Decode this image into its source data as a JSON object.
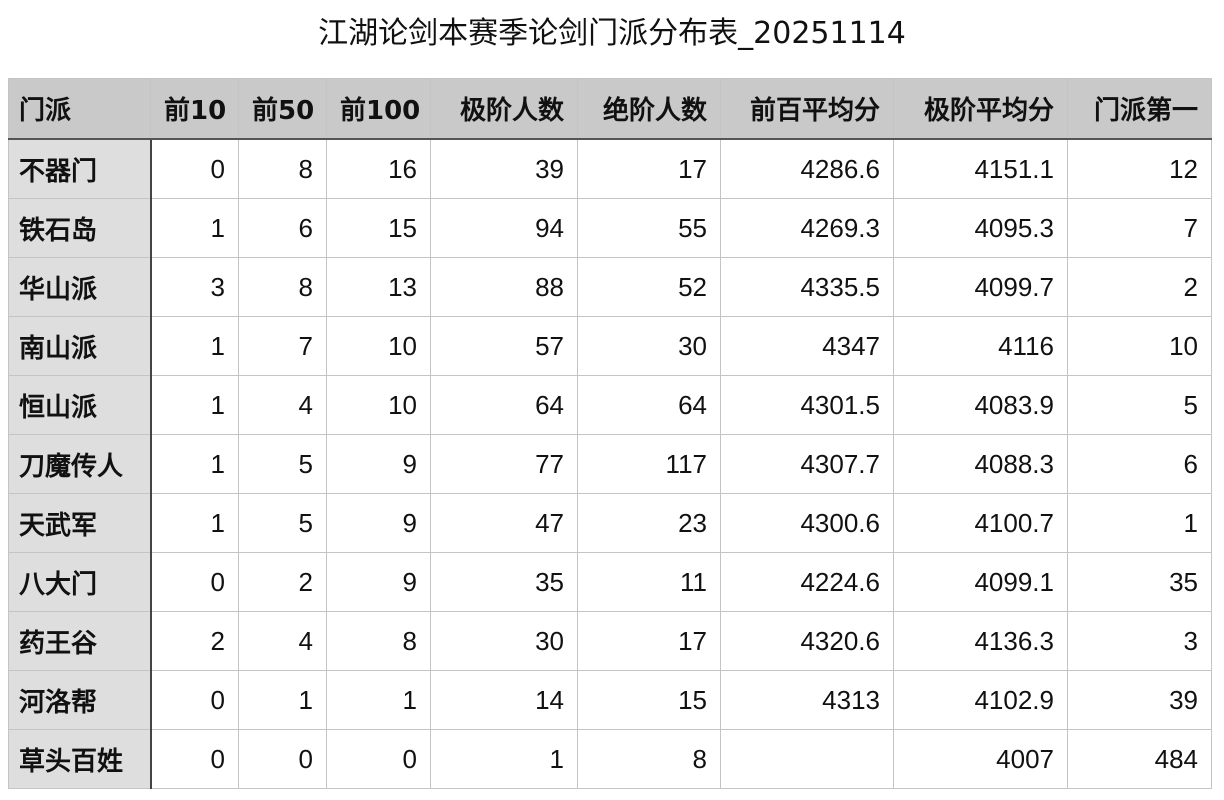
{
  "title": "江湖论剑本赛季论剑门派分布表_20251114",
  "table": {
    "headers": [
      "门派",
      "前10",
      "前50",
      "前100",
      "极阶人数",
      "绝阶人数",
      "前百平均分",
      "极阶平均分",
      "门派第一"
    ],
    "rows": [
      [
        "不器门",
        "0",
        "8",
        "16",
        "39",
        "17",
        "4286.6",
        "4151.1",
        "12"
      ],
      [
        "铁石岛",
        "1",
        "6",
        "15",
        "94",
        "55",
        "4269.3",
        "4095.3",
        "7"
      ],
      [
        "华山派",
        "3",
        "8",
        "13",
        "88",
        "52",
        "4335.5",
        "4099.7",
        "2"
      ],
      [
        "南山派",
        "1",
        "7",
        "10",
        "57",
        "30",
        "4347",
        "4116",
        "10"
      ],
      [
        "恒山派",
        "1",
        "4",
        "10",
        "64",
        "64",
        "4301.5",
        "4083.9",
        "5"
      ],
      [
        "刀魔传人",
        "1",
        "5",
        "9",
        "77",
        "117",
        "4307.7",
        "4088.3",
        "6"
      ],
      [
        "天武军",
        "1",
        "5",
        "9",
        "47",
        "23",
        "4300.6",
        "4100.7",
        "1"
      ],
      [
        "八大门",
        "0",
        "2",
        "9",
        "35",
        "11",
        "4224.6",
        "4099.1",
        "35"
      ],
      [
        "药王谷",
        "2",
        "4",
        "8",
        "30",
        "17",
        "4320.6",
        "4136.3",
        "3"
      ],
      [
        "河洛帮",
        "0",
        "1",
        "1",
        "14",
        "15",
        "4313",
        "4102.9",
        "39"
      ],
      [
        "草头百姓",
        "0",
        "0",
        "0",
        "1",
        "8",
        "",
        "4007",
        "484"
      ]
    ]
  }
}
